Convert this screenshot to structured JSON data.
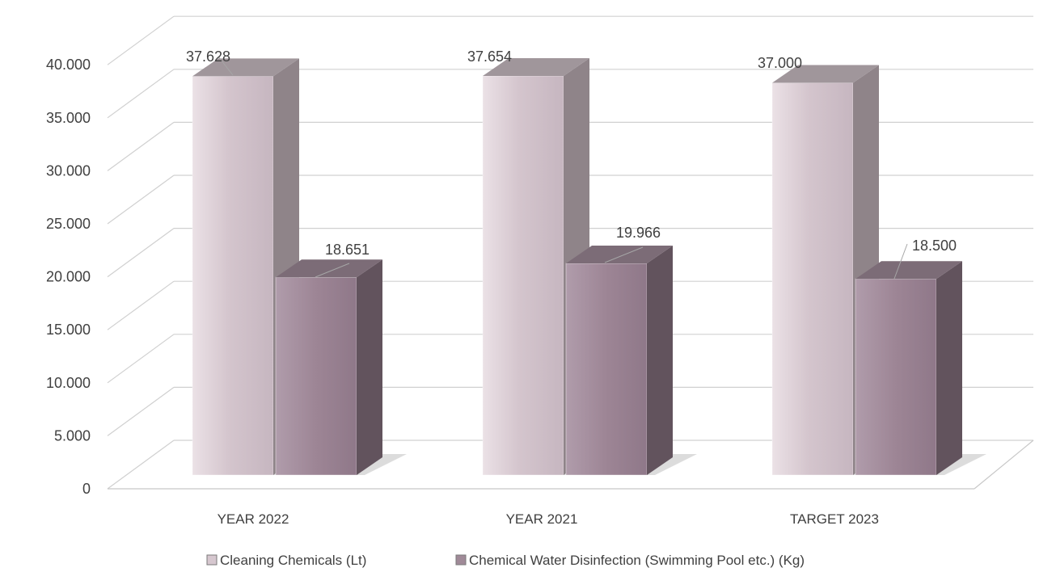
{
  "chart_data": {
    "type": "bar",
    "categories": [
      "YEAR 2022",
      "YEAR 2021",
      "TARGET 2023"
    ],
    "series": [
      {
        "name": "Cleaning Chemicals (Lt)",
        "values": [
          37628,
          37654,
          37000
        ],
        "labels": [
          "37.628",
          "37.654",
          "37.000"
        ],
        "colors": {
          "front": "#d6c7cf",
          "side": "#8f8489",
          "top": "#a0969b"
        }
      },
      {
        "name": "Chemical Water Disinfection (Swimming Pool etc.) (Kg)",
        "values": [
          18651,
          19966,
          18500
        ],
        "labels": [
          "18.651",
          "19.966",
          "18.500"
        ],
        "colors": {
          "front": "#a08a98",
          "side": "#62535d",
          "top": "#7c6c77"
        }
      }
    ],
    "ylim": [
      0,
      40000
    ],
    "yticks": [
      0,
      5000,
      10000,
      15000,
      20000,
      25000,
      30000,
      35000,
      40000
    ],
    "ytick_labels": [
      "0",
      "5.000",
      "10.000",
      "15.000",
      "20.000",
      "25.000",
      "30.000",
      "35.000",
      "40.000"
    ],
    "style": "3d-column",
    "grid": true,
    "legend_position": "bottom",
    "title": "",
    "xlabel": "",
    "ylabel": ""
  }
}
